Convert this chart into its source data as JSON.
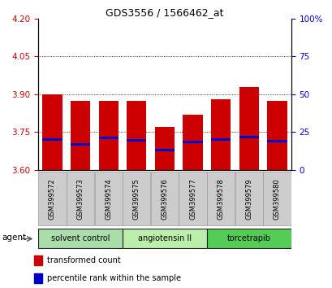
{
  "title": "GDS3556 / 1566462_at",
  "samples": [
    "GSM399572",
    "GSM399573",
    "GSM399574",
    "GSM399575",
    "GSM399576",
    "GSM399577",
    "GSM399578",
    "GSM399579",
    "GSM399580"
  ],
  "red_values": [
    3.9,
    3.873,
    3.873,
    3.873,
    3.77,
    3.82,
    3.882,
    3.93,
    3.873
  ],
  "blue_values": [
    3.72,
    3.7,
    3.727,
    3.718,
    3.68,
    3.71,
    3.72,
    3.73,
    3.715
  ],
  "blue_thickness": 0.01,
  "ymin": 3.6,
  "ymax": 4.2,
  "yticks_left": [
    3.6,
    3.75,
    3.9,
    4.05,
    4.2
  ],
  "yticks_right_vals": [
    0,
    25,
    50,
    75,
    100
  ],
  "yticks_right_labels": [
    "0",
    "25",
    "50",
    "75",
    "100%"
  ],
  "red_color": "#cc0000",
  "blue_color": "#0000cc",
  "bar_width": 0.7,
  "groups": [
    {
      "label": "solvent control",
      "indices": [
        0,
        1,
        2
      ],
      "color": "#aaddaa"
    },
    {
      "label": "angiotensin II",
      "indices": [
        3,
        4,
        5
      ],
      "color": "#bbeeaa"
    },
    {
      "label": "torcetrapib",
      "indices": [
        6,
        7,
        8
      ],
      "color": "#55cc55"
    }
  ],
  "agent_label": "agent",
  "legend_red": "transformed count",
  "legend_blue": "percentile rank within the sample",
  "tick_label_color_left": "#cc0000",
  "tick_label_color_right": "#0000cc",
  "background_color": "#ffffff",
  "sample_box_color": "#cccccc",
  "sample_box_edge": "#999999"
}
